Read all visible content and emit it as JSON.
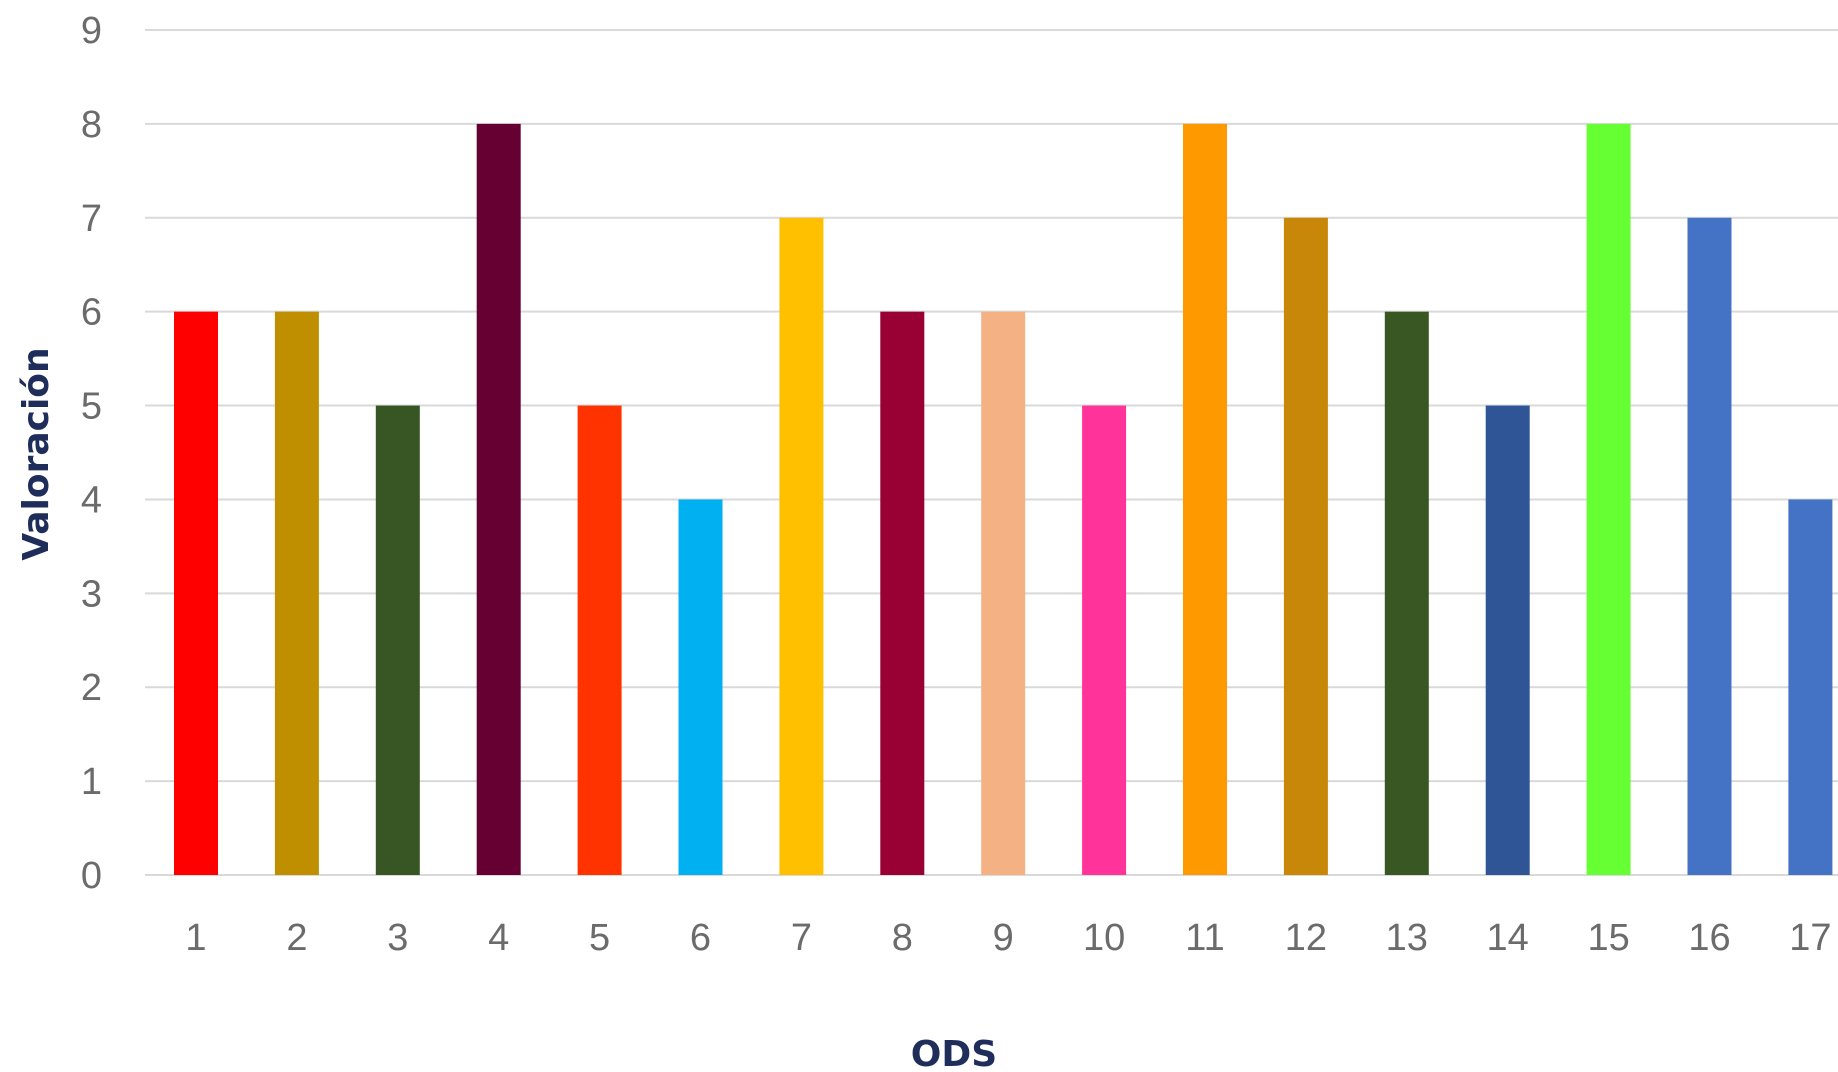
{
  "chart_data": {
    "type": "bar",
    "categories": [
      "1",
      "2",
      "3",
      "4",
      "5",
      "6",
      "7",
      "8",
      "9",
      "10",
      "11",
      "12",
      "13",
      "14",
      "15",
      "16",
      "17"
    ],
    "values": [
      6,
      6,
      5,
      8,
      5,
      4,
      7,
      6,
      6,
      5,
      8,
      7,
      6,
      5,
      8,
      7,
      4
    ],
    "colors": [
      "#ff0000",
      "#bf8f00",
      "#375623",
      "#660033",
      "#ff3300",
      "#00b0f0",
      "#ffc000",
      "#990033",
      "#f4b183",
      "#ff3399",
      "#ff9900",
      "#c9870a",
      "#385723",
      "#2f5597",
      "#66ff33",
      "#4472c4",
      "#4472c4"
    ],
    "title": "",
    "xlabel": "ODS",
    "ylabel": "Valoración",
    "ylim": [
      0,
      9
    ],
    "yticks": [
      "0",
      "1",
      "2",
      "3",
      "4",
      "5",
      "6",
      "7",
      "8",
      "9"
    ],
    "grid": true,
    "legend": "none"
  }
}
